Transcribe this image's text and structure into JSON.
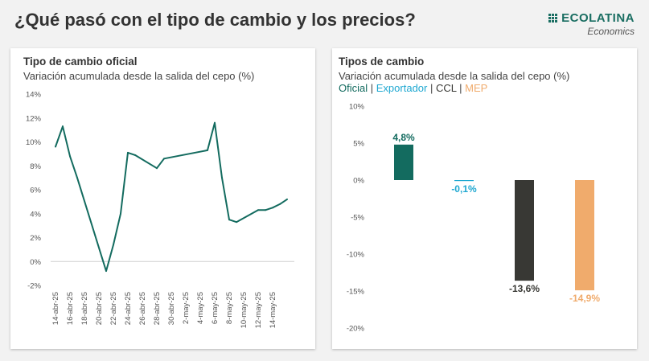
{
  "header": {
    "title": "¿Qué pasó con el tipo de cambio y los precios?"
  },
  "logo": {
    "name": "ECOLATINA",
    "sub": "Economics"
  },
  "colors": {
    "oficial": "#136b5f",
    "exportador": "#1fa8d1",
    "ccl": "#383834",
    "mep": "#f0ab6c",
    "logo": "#1a6e62"
  },
  "left_panel": {
    "title": "Tipo de cambio oficial",
    "subtitle": "Variación acumulada desde la salida del cepo (%)"
  },
  "right_panel": {
    "title": "Tipos de cambio",
    "subtitle": "Variación acumulada desde la salida del cepo (%)",
    "legend": {
      "oficial": "Oficial",
      "exportador": "Exportador",
      "ccl": "CCL",
      "mep": "MEP",
      "separator": "|"
    }
  },
  "chart_data": [
    {
      "type": "line",
      "title": "Tipo de cambio oficial",
      "subtitle": "Variación acumulada desde la salida del cepo (%)",
      "xlabel": "",
      "ylabel": "",
      "ylim": [
        -2,
        14
      ],
      "yticks": [
        "14%",
        "12%",
        "10%",
        "8%",
        "6%",
        "4%",
        "2%",
        "0%",
        "-2%"
      ],
      "ytick_values": [
        14,
        12,
        10,
        8,
        6,
        4,
        2,
        0,
        -2
      ],
      "x_tick_labels": [
        "14-abr-25",
        "16-abr-25",
        "18-abr-25",
        "20-abr-25",
        "22-abr-25",
        "24-abr-25",
        "26-abr-25",
        "28-abr-25",
        "30-abr-25",
        "2-may-25",
        "4-may-25",
        "6-may-25",
        "8-may-25",
        "10-may-25",
        "12-may-25",
        "14-may-25"
      ],
      "x": [
        "2025-04-14",
        "2025-04-15",
        "2025-04-16",
        "2025-04-17",
        "2025-04-21",
        "2025-04-22",
        "2025-04-23",
        "2025-04-24",
        "2025-04-25",
        "2025-04-28",
        "2025-04-29",
        "2025-05-05",
        "2025-05-06",
        "2025-05-07",
        "2025-05-08",
        "2025-05-09",
        "2025-05-12",
        "2025-05-13",
        "2025-05-14",
        "2025-05-15",
        "2025-05-16"
      ],
      "series": [
        {
          "values": [
            9.6,
            11.3,
            8.8,
            7.0,
            -0.8,
            1.4,
            4.0,
            9.1,
            8.9,
            7.8,
            8.6,
            9.3,
            11.6,
            7.0,
            3.5,
            3.3,
            4.3,
            4.3,
            4.5,
            4.8,
            5.2
          ]
        }
      ],
      "grid": false,
      "zero_line": true
    },
    {
      "type": "bar",
      "title": "Tipos de cambio",
      "subtitle": "Variación acumulada desde la salida del cepo (%)",
      "categories": [
        "Oficial",
        "Exportador",
        "CCL",
        "MEP"
      ],
      "values": [
        4.8,
        -0.1,
        -13.6,
        -14.9
      ],
      "value_labels": [
        "4,8%",
        "-0,1%",
        "-13,6%",
        "-14,9%"
      ],
      "ylim": [
        -20,
        10
      ],
      "yticks": [
        "10%",
        "5%",
        "0%",
        "-5%",
        "-10%",
        "-15%",
        "-20%"
      ],
      "ytick_values": [
        10,
        5,
        0,
        -5,
        -10,
        -15,
        -20
      ],
      "legend": "top-left",
      "grid": false
    }
  ]
}
